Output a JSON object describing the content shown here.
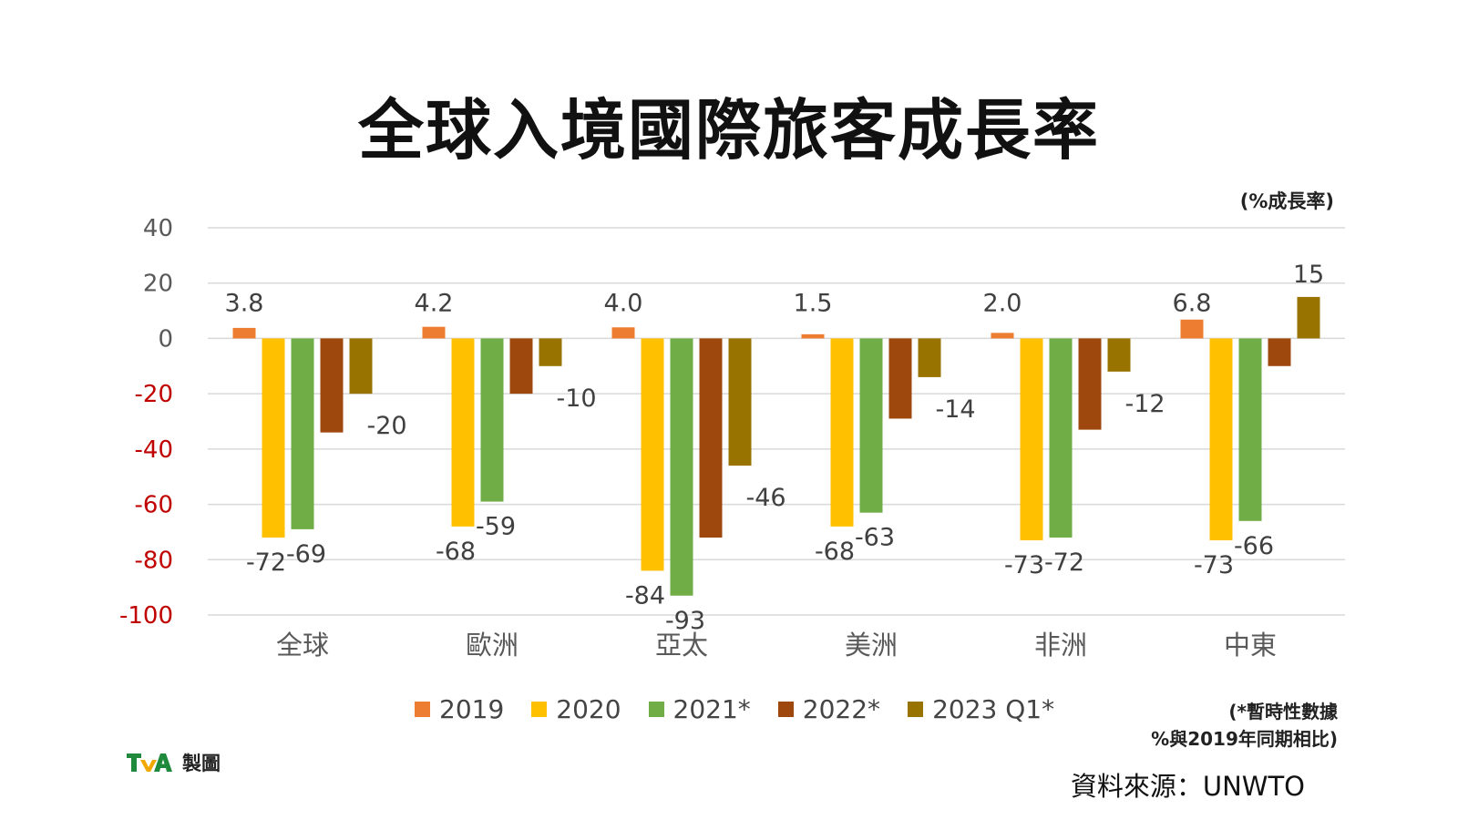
{
  "title": "全球入境國際旅客成長率",
  "unit": "(%成長率)",
  "note_lines": [
    "(*暫時性數據",
    "%與2019年同期相比)"
  ],
  "credit": "製圖",
  "source": "資料來源：UNWTO",
  "colors": {
    "grid": "#d9d9d9",
    "tick": "#595959",
    "tick_negative": "#c00000",
    "label": "#404040"
  },
  "chart_data": {
    "type": "bar",
    "categories": [
      "全球",
      "歐洲",
      "亞太",
      "美洲",
      "非洲",
      "中東"
    ],
    "series": [
      {
        "name": "2019",
        "color": "#ed7d31",
        "values": [
          3.8,
          4.2,
          4.0,
          1.5,
          2.0,
          6.8
        ]
      },
      {
        "name": "2020",
        "color": "#ffc000",
        "values": [
          -72,
          -68,
          -84,
          -68,
          -73,
          -73
        ]
      },
      {
        "name": "2021*",
        "color": "#70ad47",
        "values": [
          -69,
          -59,
          -93,
          -63,
          -72,
          -66
        ]
      },
      {
        "name": "2022*",
        "color": "#9e480e",
        "values": [
          -34,
          -20,
          -72,
          -29,
          -33,
          -10
        ]
      },
      {
        "name": "2023 Q1*",
        "color": "#997300",
        "values": [
          -20,
          -10,
          -46,
          -14,
          -12,
          15
        ]
      }
    ],
    "data_labels": [
      [
        "3.8",
        "4.2",
        "4.0",
        "1.5",
        "2.0",
        "6.8"
      ],
      [
        "-72",
        "-68",
        "-84",
        "-68",
        "-73",
        "-73"
      ],
      [
        "-69",
        "-59",
        "-93",
        "-63",
        "-72",
        "-66"
      ],
      [
        "",
        "",
        "",
        "",
        "",
        ""
      ],
      [
        "-20",
        "-10",
        "-46",
        "-14",
        "-12",
        "15"
      ]
    ],
    "ylim": [
      -100,
      40
    ],
    "yticks": [
      40,
      20,
      0,
      -20,
      -40,
      -60,
      -80,
      -100
    ],
    "grid": true,
    "legend_position": "bottom",
    "xlabel": "",
    "ylabel": ""
  }
}
